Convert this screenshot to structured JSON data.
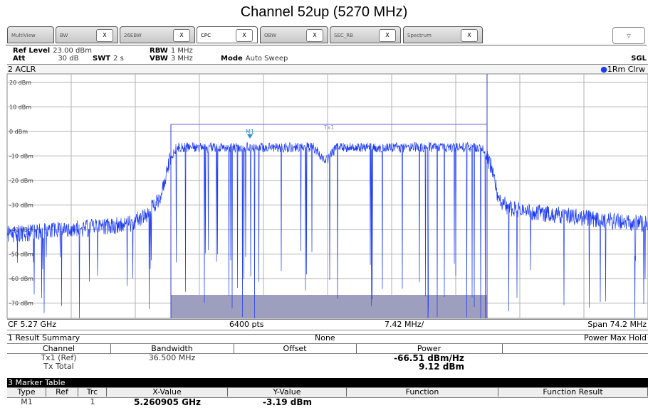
{
  "title": "Channel 52up (5270 MHz)",
  "tabs": [
    "MultiView",
    "BW",
    "26EBW",
    "CPC",
    "OBW",
    "SEC_RB",
    "Spectrum"
  ],
  "tab_close": "X",
  "dropdown": "▿",
  "settings": [
    {
      "label": "Ref Level",
      "value": "23.00 dBm"
    },
    {
      "label": "RBW",
      "value": "1 MHz"
    },
    {
      "label": "Att",
      "value": "30 dB"
    },
    {
      "label": "SWT",
      "value": "2 s"
    },
    {
      "label": "VBW",
      "value": "3 MHz"
    },
    {
      "label": "Mode",
      "value": "Auto Sweep"
    }
  ],
  "sweep_mode": "SGL",
  "window_title": "2 ACLR",
  "trace_label": "1Rm Clrw",
  "y_labels": [
    "20 dBm",
    "10 dBm",
    "0 dBm",
    "-10 dBm",
    "-20 dBm",
    "-30 dBm",
    "-40 dBm",
    "-50 dBm",
    "-60 dBm",
    "-70 dBm"
  ],
  "marker_label": "M1",
  "channel_label": "Tx1",
  "footer": {
    "cf": "CF 5.27 GHz",
    "points": "6400 pts",
    "div": "7.42 MHz/",
    "span": "Span 74.2 MHz"
  },
  "result_summary": {
    "title": "1 Result Summary",
    "mode": "None",
    "hold": "Power Max Hold",
    "columns": [
      "Channel",
      "Bandwidth",
      "Offset",
      "Power"
    ],
    "rows": [
      [
        "Tx1 (Ref)",
        "36.500 MHz",
        "",
        "-66.51 dBm/Hz"
      ],
      [
        "Tx Total",
        "",
        "",
        "9.12 dBm"
      ]
    ]
  },
  "marker_table": {
    "title": "3 Marker Table",
    "columns": [
      "Type",
      "Ref",
      "Trc",
      "X-Value",
      "Y-Value",
      "Function",
      "Function Result"
    ],
    "rows": [
      [
        "M1",
        "",
        "1",
        "5.260905 GHz",
        "-3.19 dBm",
        "",
        ""
      ]
    ]
  }
}
